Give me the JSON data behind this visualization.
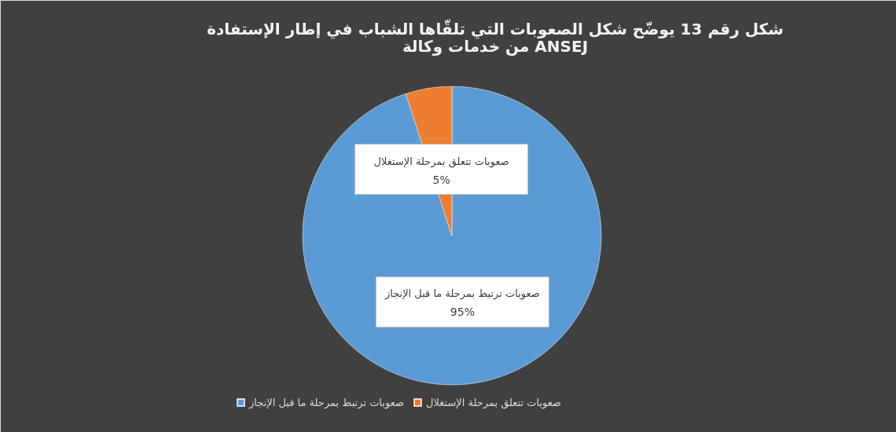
{
  "chart_data": {
    "type": "pie",
    "title": [
      "شكل رقم 13 يوضّح شكل الصعوبات التي تلقّاها الشباب في إطار الإستفادة",
      "من خدمات وكالة ANSEJ"
    ],
    "categories": [
      "صعوبات ترتبط بمرحلة ما قبل الإنجاز",
      "صعوبات تتعلق بمرحلة الإستغلال"
    ],
    "values": [
      95,
      5
    ],
    "value_labels": [
      "95%",
      "5%"
    ],
    "colors": [
      "#5b9bd5",
      "#ed7d31"
    ],
    "legend": "bottom"
  }
}
